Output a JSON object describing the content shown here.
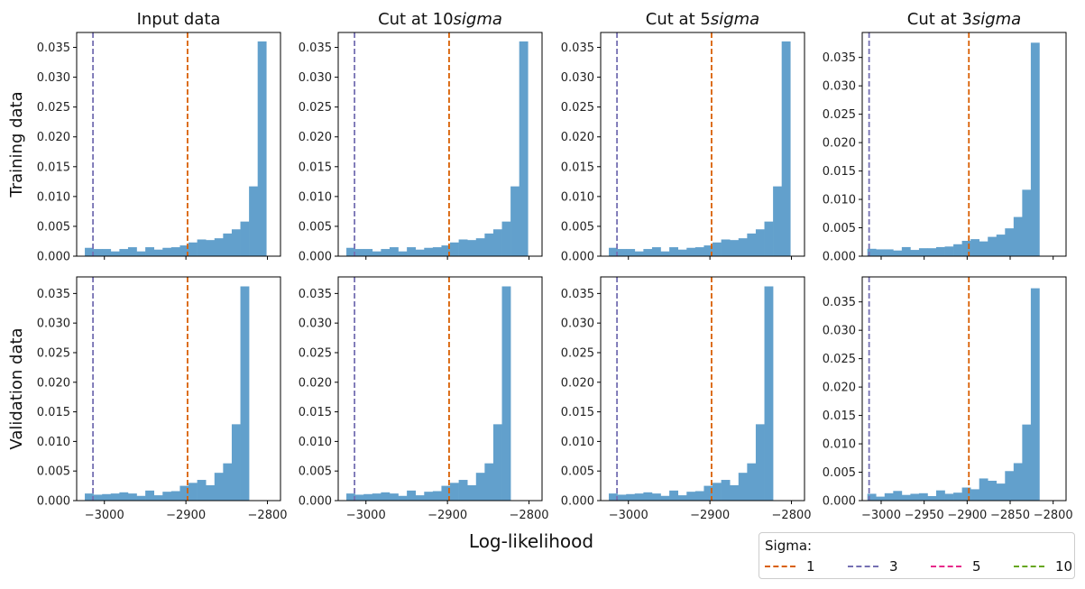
{
  "chart_data": {
    "type": "histogram-grid",
    "xlabel": "Log-likelihood",
    "column_titles": [
      "Input data",
      "Cut at 10sigma",
      "Cut at 5sigma",
      "Cut at 3sigma"
    ],
    "row_labels": [
      "Training data",
      "Validation data"
    ],
    "bar_color": "#62a0cc",
    "legend": {
      "title": "Sigma:",
      "items": [
        {
          "label": "1",
          "color": "#d95f02"
        },
        {
          "label": "3",
          "color": "#7570b3"
        },
        {
          "label": "5",
          "color": "#e7298a"
        },
        {
          "label": "10",
          "color": "#66a61e"
        }
      ]
    },
    "panels": [
      {
        "row": 0,
        "col": 0,
        "xlim": [
          -3034,
          -2784
        ],
        "ylim": [
          0,
          0.0375
        ],
        "xticks": [
          -3000,
          -2900,
          -2800
        ],
        "show_xticklabels": false,
        "yticks": [
          0.0,
          0.005,
          0.01,
          0.015,
          0.02,
          0.025,
          0.03,
          0.035
        ],
        "bin_start": -3024,
        "bin_width": 10.6,
        "values": [
          0.0014,
          0.0012,
          0.0012,
          0.0008,
          0.0012,
          0.0015,
          0.0008,
          0.0015,
          0.0011,
          0.0014,
          0.0015,
          0.0018,
          0.0023,
          0.0028,
          0.0027,
          0.003,
          0.0038,
          0.0045,
          0.0058,
          0.0117,
          0.036
        ],
        "vlines": [
          {
            "x": -2898,
            "sigma": "1"
          },
          {
            "x": -3014,
            "sigma": "3"
          }
        ]
      },
      {
        "row": 0,
        "col": 1,
        "xlim": [
          -3034,
          -2784
        ],
        "ylim": [
          0,
          0.0375
        ],
        "xticks": [
          -3000,
          -2900,
          -2800
        ],
        "show_xticklabels": false,
        "yticks": [
          0.0,
          0.005,
          0.01,
          0.015,
          0.02,
          0.025,
          0.03,
          0.035
        ],
        "bin_start": -3024,
        "bin_width": 10.6,
        "values": [
          0.0014,
          0.0012,
          0.0012,
          0.0008,
          0.0012,
          0.0015,
          0.0008,
          0.0015,
          0.0011,
          0.0014,
          0.0015,
          0.0018,
          0.0023,
          0.0028,
          0.0027,
          0.003,
          0.0038,
          0.0045,
          0.0058,
          0.0117,
          0.036
        ],
        "vlines": [
          {
            "x": -2898,
            "sigma": "1"
          },
          {
            "x": -3014,
            "sigma": "3"
          }
        ]
      },
      {
        "row": 0,
        "col": 2,
        "xlim": [
          -3034,
          -2784
        ],
        "ylim": [
          0,
          0.0375
        ],
        "xticks": [
          -3000,
          -2900,
          -2800
        ],
        "show_xticklabels": false,
        "yticks": [
          0.0,
          0.005,
          0.01,
          0.015,
          0.02,
          0.025,
          0.03,
          0.035
        ],
        "bin_start": -3024,
        "bin_width": 10.6,
        "values": [
          0.0014,
          0.0012,
          0.0012,
          0.0008,
          0.0012,
          0.0015,
          0.0008,
          0.0015,
          0.0011,
          0.0014,
          0.0015,
          0.0018,
          0.0023,
          0.0028,
          0.0027,
          0.003,
          0.0038,
          0.0045,
          0.0058,
          0.0117,
          0.036
        ],
        "vlines": [
          {
            "x": -2898,
            "sigma": "1"
          },
          {
            "x": -3014,
            "sigma": "3"
          }
        ]
      },
      {
        "row": 0,
        "col": 3,
        "xlim": [
          -3022,
          -2785
        ],
        "ylim": [
          0,
          0.0394
        ],
        "xticks": [
          -3000,
          -2950,
          -2900,
          -2850,
          -2800
        ],
        "show_xticklabels": false,
        "yticks": [
          0.0,
          0.005,
          0.01,
          0.015,
          0.02,
          0.025,
          0.03,
          0.035
        ],
        "bin_start": -3016,
        "bin_width": 10.0,
        "values": [
          0.0013,
          0.0012,
          0.0012,
          0.001,
          0.0016,
          0.0011,
          0.0014,
          0.0014,
          0.0016,
          0.0017,
          0.0021,
          0.0027,
          0.003,
          0.0026,
          0.0034,
          0.0038,
          0.0049,
          0.0069,
          0.0117,
          0.0376
        ],
        "vlines": [
          {
            "x": -2898,
            "sigma": "1"
          },
          {
            "x": -3014,
            "sigma": "3"
          }
        ]
      },
      {
        "row": 1,
        "col": 0,
        "xlim": [
          -3034,
          -2784
        ],
        "ylim": [
          0,
          0.0378
        ],
        "xticks": [
          -3000,
          -2900,
          -2800
        ],
        "show_xticklabels": true,
        "yticks": [
          0.0,
          0.005,
          0.01,
          0.015,
          0.02,
          0.025,
          0.03,
          0.035
        ],
        "bin_start": -3024,
        "bin_width": 10.6,
        "values": [
          0.0012,
          0.001,
          0.0011,
          0.0012,
          0.0014,
          0.0012,
          0.0008,
          0.0017,
          0.0009,
          0.0015,
          0.0016,
          0.0025,
          0.003,
          0.0035,
          0.0026,
          0.0047,
          0.0063,
          0.0129,
          0.0362
        ],
        "vlines": [
          {
            "x": -2898,
            "sigma": "1"
          },
          {
            "x": -3014,
            "sigma": "3"
          }
        ]
      },
      {
        "row": 1,
        "col": 1,
        "xlim": [
          -3034,
          -2784
        ],
        "ylim": [
          0,
          0.0378
        ],
        "xticks": [
          -3000,
          -2900,
          -2800
        ],
        "show_xticklabels": true,
        "yticks": [
          0.0,
          0.005,
          0.01,
          0.015,
          0.02,
          0.025,
          0.03,
          0.035
        ],
        "bin_start": -3024,
        "bin_width": 10.6,
        "values": [
          0.0012,
          0.001,
          0.0011,
          0.0012,
          0.0014,
          0.0012,
          0.0008,
          0.0017,
          0.0009,
          0.0015,
          0.0016,
          0.0025,
          0.003,
          0.0035,
          0.0026,
          0.0047,
          0.0063,
          0.0129,
          0.0362
        ],
        "vlines": [
          {
            "x": -2898,
            "sigma": "1"
          },
          {
            "x": -3014,
            "sigma": "3"
          }
        ]
      },
      {
        "row": 1,
        "col": 2,
        "xlim": [
          -3034,
          -2784
        ],
        "ylim": [
          0,
          0.0378
        ],
        "xticks": [
          -3000,
          -2900,
          -2800
        ],
        "show_xticklabels": true,
        "yticks": [
          0.0,
          0.005,
          0.01,
          0.015,
          0.02,
          0.025,
          0.03,
          0.035
        ],
        "bin_start": -3024,
        "bin_width": 10.6,
        "values": [
          0.0012,
          0.001,
          0.0011,
          0.0012,
          0.0014,
          0.0012,
          0.0008,
          0.0017,
          0.0009,
          0.0015,
          0.0016,
          0.0025,
          0.003,
          0.0035,
          0.0026,
          0.0047,
          0.0063,
          0.0129,
          0.0362
        ],
        "vlines": [
          {
            "x": -2898,
            "sigma": "1"
          },
          {
            "x": -3014,
            "sigma": "3"
          }
        ]
      },
      {
        "row": 1,
        "col": 3,
        "xlim": [
          -3022,
          -2785
        ],
        "ylim": [
          0,
          0.0394
        ],
        "xticks": [
          -3000,
          -2950,
          -2900,
          -2850,
          -2800
        ],
        "show_xticklabels": true,
        "yticks": [
          0.0,
          0.005,
          0.01,
          0.015,
          0.02,
          0.025,
          0.03,
          0.035
        ],
        "bin_start": -3016,
        "bin_width": 10.0,
        "values": [
          0.0012,
          0.0007,
          0.0013,
          0.0017,
          0.001,
          0.0012,
          0.0013,
          0.0008,
          0.0018,
          0.0012,
          0.0014,
          0.0023,
          0.002,
          0.0039,
          0.0035,
          0.003,
          0.0052,
          0.0066,
          0.0134,
          0.0374
        ],
        "vlines": [
          {
            "x": -2898,
            "sigma": "1"
          },
          {
            "x": -3014,
            "sigma": "3"
          }
        ]
      }
    ]
  }
}
